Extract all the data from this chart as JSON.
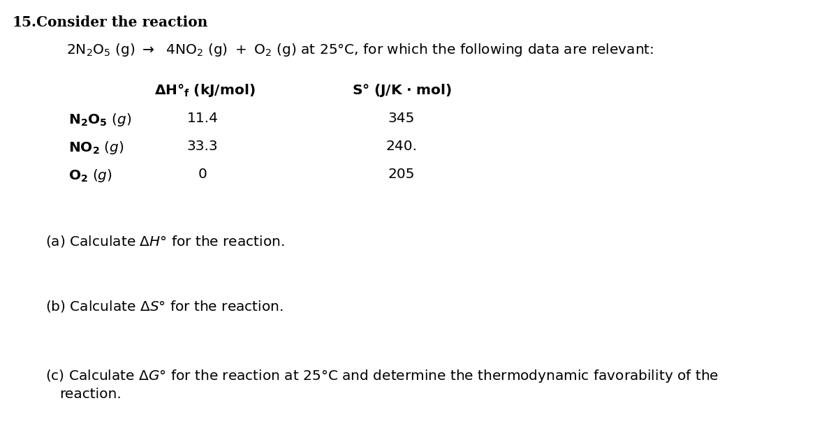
{
  "background_color": "#ffffff",
  "fig_width": 12.0,
  "fig_height": 6.4,
  "dpi": 100,
  "fs_main": 14.5,
  "fs_bold": 14.5,
  "title_num": "15.",
  "title_text": "Consider the reaction",
  "col_header_dH": "ΔH°ₑ (kJ/mol)",
  "col_header_S": "S° (J/K · mol)",
  "rows": [
    {
      "name_bold": "N₂O₅",
      "dH": "11.4",
      "S": "345"
    },
    {
      "name_bold": "NO₂",
      "dH": "33.3",
      "S": "240."
    },
    {
      "name_bold": "O₂",
      "dH": "0",
      "S": "205"
    }
  ],
  "part_a": "(a) Calculate ΔH° for the reaction.",
  "part_b": "(b) Calculate ΔS° for the reaction.",
  "part_c1": "(c) Calculate ΔG° for the reaction at 25°C and determine the thermodynamic favorability of the",
  "part_c2": "reaction."
}
